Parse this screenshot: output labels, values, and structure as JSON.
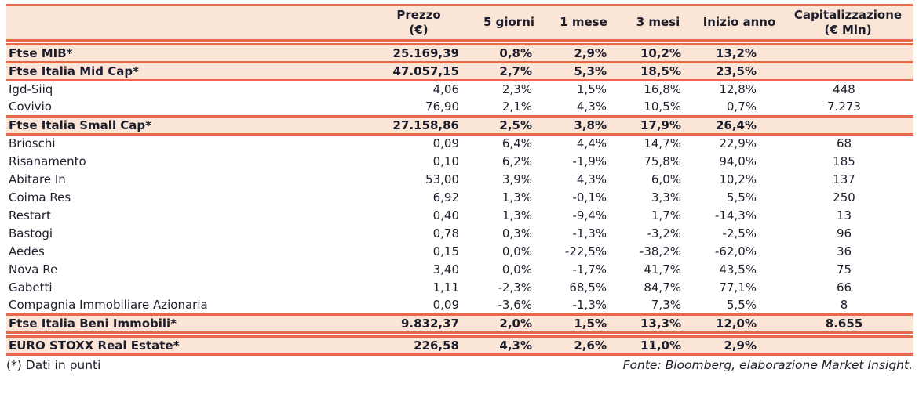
{
  "colors": {
    "accent_border": "#E8684C",
    "row_highlight": "#FBE5D6",
    "text": "#1D1E2C",
    "background": "#FFFFFF"
  },
  "table": {
    "columns": [
      {
        "label": "",
        "sublabel": ""
      },
      {
        "label": "Prezzo",
        "sublabel": "(€)"
      },
      {
        "label": "5 giorni",
        "sublabel": ""
      },
      {
        "label": "1 mese",
        "sublabel": ""
      },
      {
        "label": "3 mesi",
        "sublabel": ""
      },
      {
        "label": "Inizio anno",
        "sublabel": ""
      },
      {
        "label": "Capitalizzazione",
        "sublabel": "(€ Mln)"
      }
    ],
    "rows": [
      {
        "type": "index",
        "gap_before": true,
        "name": "Ftse MIB*",
        "prezzo": "25.169,39",
        "d5": "0,8%",
        "m1": "2,9%",
        "m3": "10,2%",
        "ytd": "13,2%",
        "cap": ""
      },
      {
        "type": "index",
        "gap_before": false,
        "name": "Ftse Italia Mid Cap*",
        "prezzo": "47.057,15",
        "d5": "2,7%",
        "m1": "5,3%",
        "m3": "18,5%",
        "ytd": "23,5%",
        "cap": ""
      },
      {
        "type": "stock",
        "gap_before": false,
        "name": "Igd-Siiq",
        "prezzo": "4,06",
        "d5": "2,3%",
        "m1": "1,5%",
        "m3": "16,8%",
        "ytd": "12,8%",
        "cap": "448"
      },
      {
        "type": "stock",
        "gap_before": false,
        "name": "Covivio",
        "prezzo": "76,90",
        "d5": "2,1%",
        "m1": "4,3%",
        "m3": "10,5%",
        "ytd": "0,7%",
        "cap": "7.273"
      },
      {
        "type": "index",
        "gap_before": false,
        "name": "Ftse Italia Small Cap*",
        "prezzo": "27.158,86",
        "d5": "2,5%",
        "m1": "3,8%",
        "m3": "17,9%",
        "ytd": "26,4%",
        "cap": ""
      },
      {
        "type": "stock",
        "gap_before": false,
        "name": "Brioschi",
        "prezzo": "0,09",
        "d5": "6,4%",
        "m1": "4,4%",
        "m3": "14,7%",
        "ytd": "22,9%",
        "cap": "68"
      },
      {
        "type": "stock",
        "gap_before": false,
        "name": "Risanamento",
        "prezzo": "0,10",
        "d5": "6,2%",
        "m1": "-1,9%",
        "m3": "75,8%",
        "ytd": "94,0%",
        "cap": "185"
      },
      {
        "type": "stock",
        "gap_before": false,
        "name": "Abitare In",
        "prezzo": "53,00",
        "d5": "3,9%",
        "m1": "4,3%",
        "m3": "6,0%",
        "ytd": "10,2%",
        "cap": "137"
      },
      {
        "type": "stock",
        "gap_before": false,
        "name": "Coima Res",
        "prezzo": "6,92",
        "d5": "1,3%",
        "m1": "-0,1%",
        "m3": "3,3%",
        "ytd": "5,5%",
        "cap": "250"
      },
      {
        "type": "stock",
        "gap_before": false,
        "name": "Restart",
        "prezzo": "0,40",
        "d5": "1,3%",
        "m1": "-9,4%",
        "m3": "1,7%",
        "ytd": "-14,3%",
        "cap": "13"
      },
      {
        "type": "stock",
        "gap_before": false,
        "name": "Bastogi",
        "prezzo": "0,78",
        "d5": "0,3%",
        "m1": "-1,3%",
        "m3": "-3,2%",
        "ytd": "-2,5%",
        "cap": "96"
      },
      {
        "type": "stock",
        "gap_before": false,
        "name": "Aedes",
        "prezzo": "0,15",
        "d5": "0,0%",
        "m1": "-22,5%",
        "m3": "-38,2%",
        "ytd": "-62,0%",
        "cap": "36"
      },
      {
        "type": "stock",
        "gap_before": false,
        "name": "Nova Re",
        "prezzo": "3,40",
        "d5": "0,0%",
        "m1": "-1,7%",
        "m3": "41,7%",
        "ytd": "43,5%",
        "cap": "75"
      },
      {
        "type": "stock",
        "gap_before": false,
        "name": "Gabetti",
        "prezzo": "1,11",
        "d5": "-2,3%",
        "m1": "68,5%",
        "m3": "84,7%",
        "ytd": "77,1%",
        "cap": "66"
      },
      {
        "type": "stock",
        "gap_before": false,
        "name": "Compagnia Immobiliare Azionaria",
        "prezzo": "0,09",
        "d5": "-3,6%",
        "m1": "-1,3%",
        "m3": "7,3%",
        "ytd": "5,5%",
        "cap": "8"
      },
      {
        "type": "index",
        "gap_before": false,
        "name": "Ftse Italia Beni Immobili*",
        "prezzo": "9.832,37",
        "d5": "2,0%",
        "m1": "1,5%",
        "m3": "13,3%",
        "ytd": "12,0%",
        "cap": "8.655"
      },
      {
        "type": "index",
        "gap_before": true,
        "name": "EURO STOXX Real Estate*",
        "prezzo": "226,58",
        "d5": "4,3%",
        "m1": "2,6%",
        "m3": "11,0%",
        "ytd": "2,9%",
        "cap": ""
      }
    ]
  },
  "footer": {
    "left": "(*) Dati in punti",
    "right": "Fonte: Bloomberg, elaborazione Market Insight."
  }
}
